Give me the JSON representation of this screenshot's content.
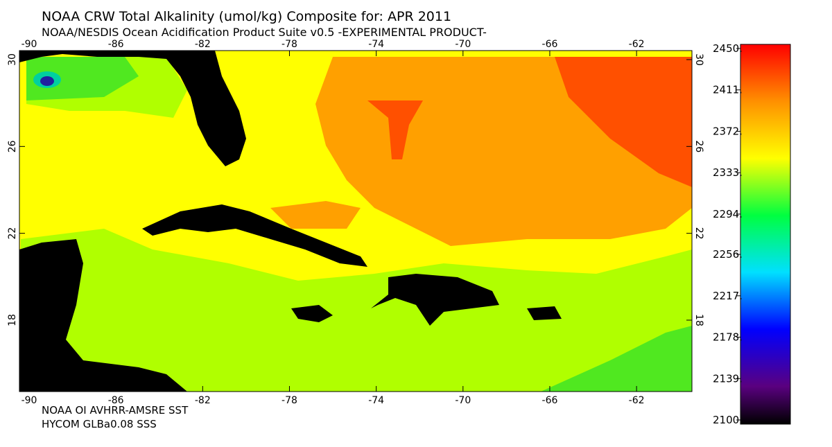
{
  "header": {
    "title": "NOAA CRW Total Alkalinity (umol/kg) Composite for: APR 2011",
    "subtitle": "NOAA/NESDIS Ocean Acidification Product Suite  v0.5 -EXPERIMENTAL PRODUCT-"
  },
  "map": {
    "lon_ticks": [
      -90,
      -86,
      -82,
      -78,
      -74,
      -70,
      -66,
      -62
    ],
    "lat_ticks": [
      30,
      26,
      22,
      18
    ]
  },
  "colorbar": {
    "range": [
      2100,
      2450
    ],
    "ticks": [
      {
        "value": 2450,
        "label": "2450."
      },
      {
        "value": 2411,
        "label": "2411."
      },
      {
        "value": 2372,
        "label": "2372."
      },
      {
        "value": 2333,
        "label": "2333."
      },
      {
        "value": 2294,
        "label": "2294."
      },
      {
        "value": 2256,
        "label": "2256."
      },
      {
        "value": 2217,
        "label": "2217."
      },
      {
        "value": 2178,
        "label": "2178."
      },
      {
        "value": 2139,
        "label": "2139."
      },
      {
        "value": 2100,
        "label": "2100."
      }
    ]
  },
  "footer": {
    "line1": "NOAA OI AVHRR-AMSRE SST",
    "line2": "HYCOM GLBa0.08 SSS"
  }
}
